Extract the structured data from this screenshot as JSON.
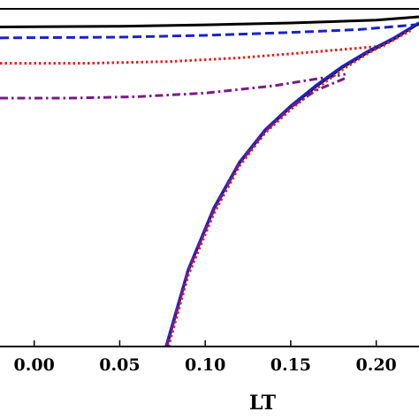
{
  "chart_data": {
    "type": "line",
    "title": "",
    "xlabel": "LT",
    "ylabel": "",
    "xlim": [
      -0.02,
      0.225
    ],
    "ylim": [
      -0.1,
      0.83
    ],
    "x_ticks": [
      {
        "value": 0.0,
        "label": "0.00"
      },
      {
        "value": 0.05,
        "label": "0.05"
      },
      {
        "value": 0.1,
        "label": "0.10"
      },
      {
        "value": 0.15,
        "label": "0.15"
      },
      {
        "value": 0.2,
        "label": "0.20"
      }
    ],
    "grid": false,
    "colors": {
      "black": "#000000",
      "blue": "#1a22c8",
      "red": "#e0201a",
      "purple": "#7a1a8a"
    },
    "series": [
      {
        "key": "black_flat",
        "style": "solid",
        "color": "black",
        "x": [
          -0.02,
          0.05,
          0.1,
          0.15,
          0.2,
          0.225
        ],
        "y": [
          0.78,
          0.782,
          0.786,
          0.791,
          0.799,
          0.808
        ]
      },
      {
        "key": "blue_flat",
        "style": "dashed",
        "color": "blue",
        "x": [
          -0.02,
          0.05,
          0.1,
          0.15,
          0.19,
          0.225
        ],
        "y": [
          0.75,
          0.752,
          0.757,
          0.765,
          0.773,
          0.787
        ]
      },
      {
        "key": "red_flat",
        "style": "dotted",
        "color": "red",
        "x": [
          -0.02,
          0.03,
          0.08,
          0.12,
          0.16,
          0.205
        ],
        "y": [
          0.68,
          0.68,
          0.685,
          0.695,
          0.71,
          0.728
        ]
      },
      {
        "key": "purple_flat",
        "style": "dashdot",
        "color": "purple",
        "x": [
          -0.02,
          0.02,
          0.06,
          0.1,
          0.14,
          0.182
        ],
        "y": [
          0.584,
          0.584,
          0.588,
          0.598,
          0.618,
          0.65
        ]
      },
      {
        "key": "black_rising",
        "style": "solid",
        "color": "black",
        "x": [
          0.0775,
          0.09,
          0.105,
          0.12,
          0.135,
          0.15,
          0.165,
          0.18,
          0.195,
          0.21,
          0.225
        ],
        "y": [
          -0.1,
          0.109,
          0.279,
          0.405,
          0.494,
          0.56,
          0.617,
          0.668,
          0.71,
          0.746,
          0.79
        ]
      },
      {
        "key": "blue_rising",
        "style": "solid",
        "color": "blue",
        "x": [
          0.077,
          0.09,
          0.105,
          0.12,
          0.135,
          0.15,
          0.165,
          0.18,
          0.195,
          0.21,
          0.225
        ],
        "y": [
          -0.1,
          0.112,
          0.282,
          0.408,
          0.497,
          0.563,
          0.62,
          0.671,
          0.713,
          0.749,
          0.792
        ]
      },
      {
        "key": "red_rising",
        "style": "dotted",
        "color": "red",
        "x": [
          0.0785,
          0.09,
          0.105,
          0.12,
          0.135,
          0.15,
          0.165,
          0.18,
          0.195,
          0.21,
          0.22
        ],
        "y": [
          -0.1,
          0.095,
          0.266,
          0.397,
          0.488,
          0.553,
          0.61,
          0.662,
          0.707,
          0.744,
          0.77
        ]
      },
      {
        "key": "purple_rising",
        "style": "dashdot",
        "color": "purple",
        "x": [
          0.0775,
          0.09,
          0.105,
          0.12,
          0.135,
          0.15,
          0.165,
          0.182
        ],
        "y": [
          -0.1,
          0.107,
          0.275,
          0.404,
          0.492,
          0.559,
          0.606,
          0.639
        ]
      }
    ]
  }
}
